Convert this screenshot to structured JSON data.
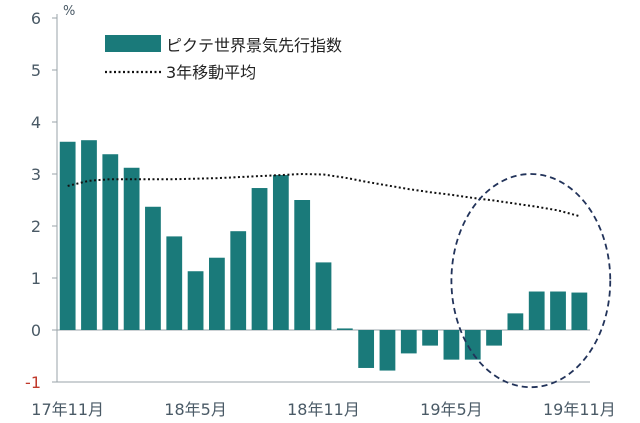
{
  "chart_data": {
    "type": "bar",
    "unit_label": "%",
    "ylim": [
      -1,
      6
    ],
    "yticks": [
      {
        "v": 6,
        "label": "6"
      },
      {
        "v": 5,
        "label": "5"
      },
      {
        "v": 4,
        "label": "4"
      },
      {
        "v": 3,
        "label": "3"
      },
      {
        "v": 2,
        "label": "2"
      },
      {
        "v": 1,
        "label": "1"
      },
      {
        "v": 0,
        "label": "0"
      },
      {
        "v": -1,
        "label": "-1"
      }
    ],
    "categories": [
      "17/11",
      "17/12",
      "18/1",
      "18/2",
      "18/3",
      "18/4",
      "18/5",
      "18/6",
      "18/7",
      "18/8",
      "18/9",
      "18/10",
      "18/11",
      "18/12",
      "19/1",
      "19/2",
      "19/3",
      "19/4",
      "19/5",
      "19/6",
      "19/7",
      "19/8",
      "19/9",
      "19/10",
      "19/11"
    ],
    "xtick_labels": [
      {
        "index": 0,
        "label": "17年11月"
      },
      {
        "index": 6,
        "label": "18年5月"
      },
      {
        "index": 12,
        "label": "18年11月"
      },
      {
        "index": 18,
        "label": "19年5月"
      },
      {
        "index": 24,
        "label": "19年11月"
      }
    ],
    "series": [
      {
        "name": "ピクテ世界景気先行指数",
        "kind": "bar",
        "color": "#1a7a7a",
        "values": [
          3.62,
          3.65,
          3.38,
          3.12,
          2.37,
          1.8,
          1.13,
          1.39,
          1.9,
          2.73,
          2.98,
          2.5,
          1.3,
          0.03,
          -0.73,
          -0.78,
          -0.45,
          -0.3,
          -0.57,
          -0.57,
          -0.3,
          0.32,
          0.74,
          0.74,
          0.72
        ]
      },
      {
        "name": "3年移動平均",
        "kind": "dotted-line",
        "color": "#111111",
        "values": [
          2.77,
          2.87,
          2.9,
          2.9,
          2.9,
          2.9,
          2.91,
          2.92,
          2.94,
          2.96,
          2.98,
          3.0,
          2.99,
          2.93,
          2.85,
          2.78,
          2.71,
          2.65,
          2.6,
          2.54,
          2.49,
          2.43,
          2.37,
          2.3,
          2.19
        ]
      }
    ],
    "highlight": {
      "shape": "dashed-ellipse",
      "color": "#22335a",
      "from_index": 19,
      "to_index": 24
    },
    "legend_position": "top-left",
    "grid": false
  }
}
